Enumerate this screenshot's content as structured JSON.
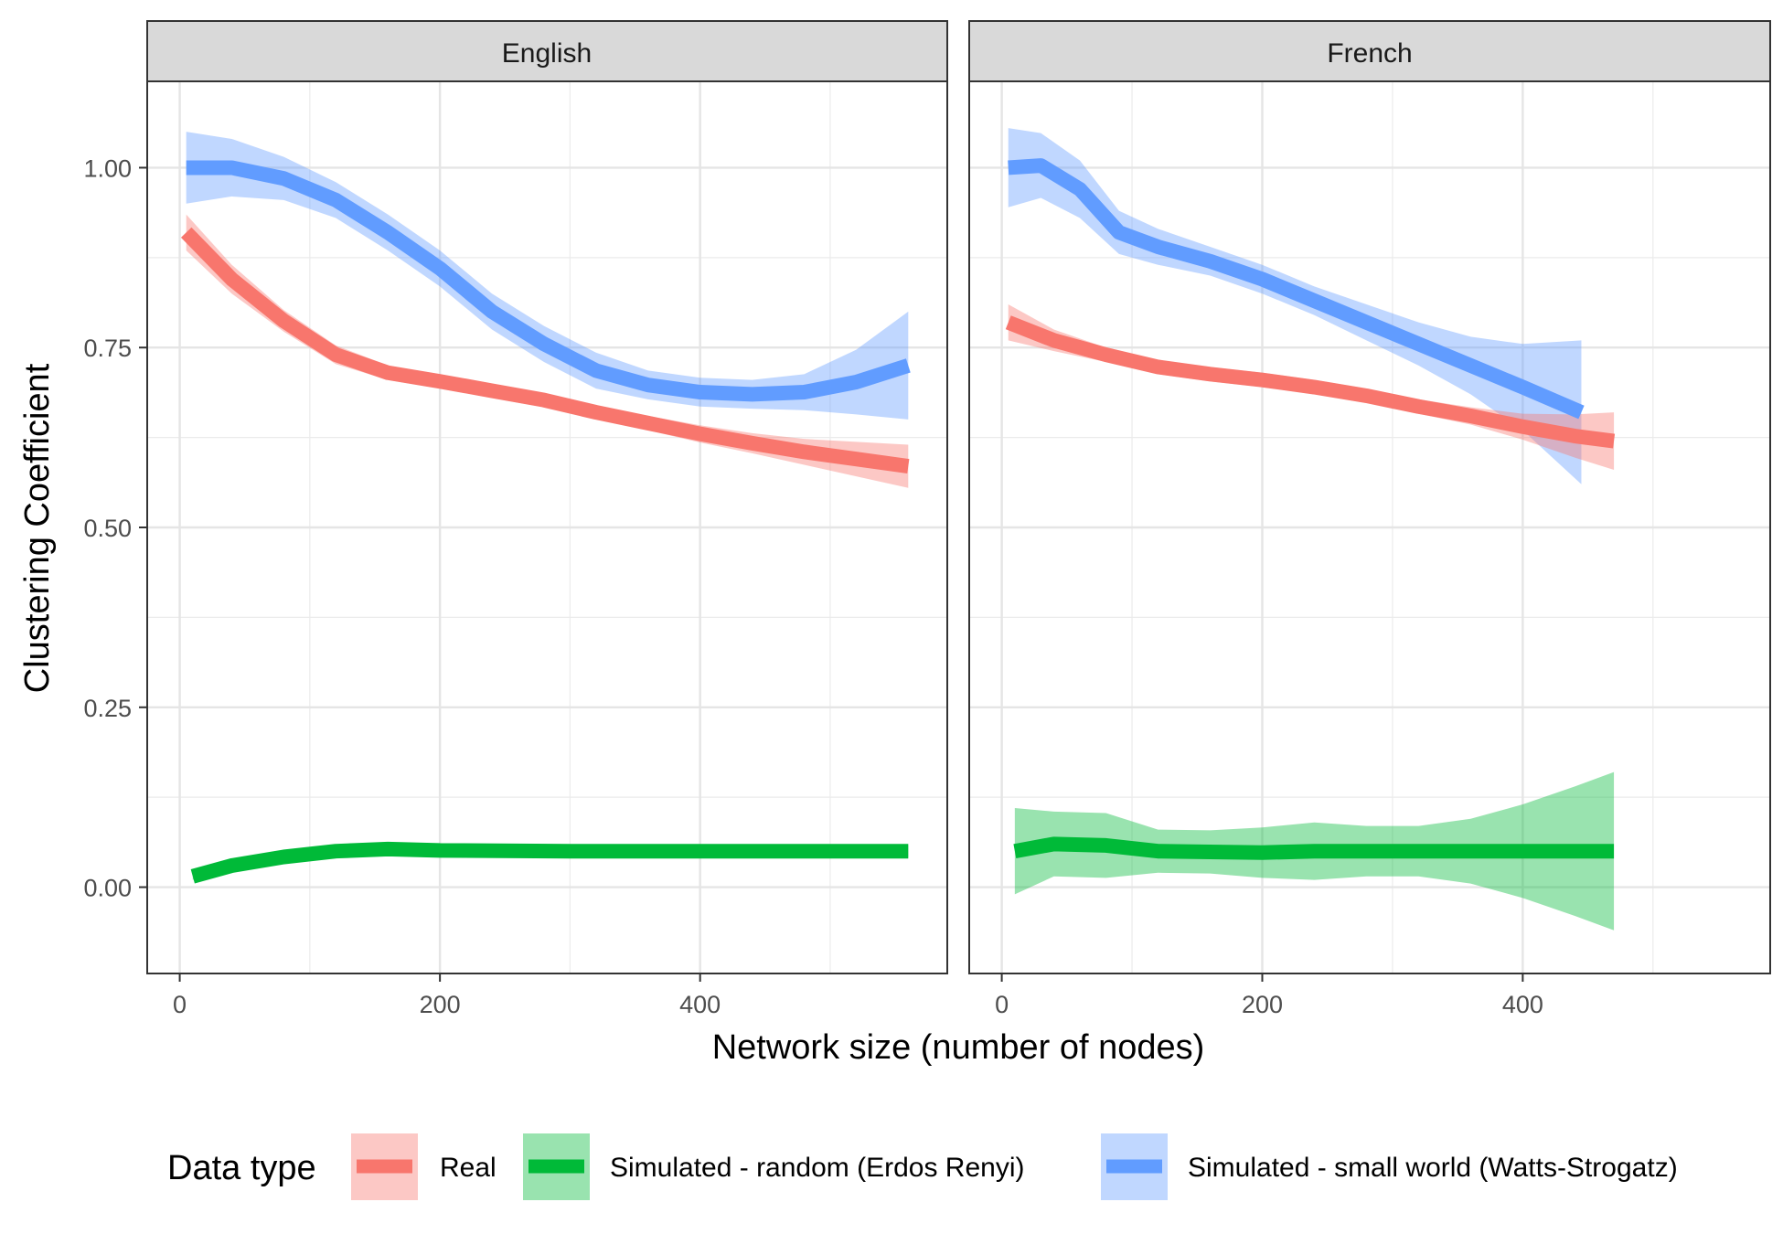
{
  "chart_data": {
    "type": "line",
    "xlabel": "Network size (number of nodes)",
    "ylabel": "Clustering Coefficient",
    "xlim": [
      -25,
      590
    ],
    "ylim": [
      -0.12,
      1.12
    ],
    "x_ticks": [
      0,
      200,
      400
    ],
    "y_ticks": [
      0.0,
      0.25,
      0.5,
      0.75,
      1.0
    ],
    "y_tick_labels": [
      "0.00",
      "0.25",
      "0.50",
      "0.75",
      "1.00"
    ],
    "grid": true,
    "legend": {
      "title": "Data type",
      "position": "bottom",
      "entries": [
        {
          "label": "Real",
          "color": "#F8766D"
        },
        {
          "label": "Simulated - random (Erdos Renyi)",
          "color": "#00BA38"
        },
        {
          "label": "Simulated - small world (Watts-Strogatz)",
          "color": "#619CFF"
        }
      ]
    },
    "facets": [
      {
        "title": "English",
        "series": [
          {
            "name": "Simulated - small world (Watts-Strogatz)",
            "color": "#619CFF",
            "x": [
              5,
              40,
              80,
              120,
              160,
              200,
              240,
              280,
              320,
              360,
              400,
              440,
              480,
              520,
              560
            ],
            "y": [
              1.0,
              1.0,
              0.985,
              0.955,
              0.91,
              0.86,
              0.8,
              0.755,
              0.718,
              0.698,
              0.688,
              0.685,
              0.688,
              0.702,
              0.725
            ],
            "ci": [
              0.05,
              0.04,
              0.03,
              0.025,
              0.025,
              0.025,
              0.025,
              0.025,
              0.025,
              0.02,
              0.02,
              0.02,
              0.025,
              0.045,
              0.075
            ]
          },
          {
            "name": "Real",
            "color": "#F8766D",
            "x": [
              5,
              40,
              80,
              120,
              160,
              200,
              240,
              280,
              320,
              360,
              400,
              440,
              480,
              520,
              560
            ],
            "y": [
              0.91,
              0.845,
              0.787,
              0.74,
              0.715,
              0.703,
              0.69,
              0.677,
              0.66,
              0.645,
              0.63,
              0.617,
              0.605,
              0.595,
              0.585
            ],
            "ci": [
              0.025,
              0.02,
              0.015,
              0.013,
              0.01,
              0.01,
              0.01,
              0.01,
              0.01,
              0.01,
              0.012,
              0.014,
              0.018,
              0.024,
              0.03
            ]
          },
          {
            "name": "Simulated - random (Erdos Renyi)",
            "color": "#00BA38",
            "x": [
              10,
              40,
              80,
              120,
              160,
              200,
              300,
              400,
              500,
              560
            ],
            "y": [
              0.015,
              0.03,
              0.042,
              0.05,
              0.053,
              0.051,
              0.05,
              0.05,
              0.05,
              0.05
            ],
            "ci": [
              0.005,
              0.004,
              0.004,
              0.003,
              0.003,
              0.003,
              0.003,
              0.003,
              0.005,
              0.008
            ]
          }
        ]
      },
      {
        "title": "French",
        "series": [
          {
            "name": "Simulated - small world (Watts-Strogatz)",
            "color": "#619CFF",
            "x": [
              5,
              30,
              60,
              90,
              120,
              160,
              200,
              240,
              280,
              320,
              360,
              400,
              445
            ],
            "y": [
              1.0,
              1.003,
              0.97,
              0.91,
              0.89,
              0.87,
              0.845,
              0.815,
              0.785,
              0.755,
              0.725,
              0.695,
              0.66
            ],
            "ci": [
              0.055,
              0.045,
              0.04,
              0.03,
              0.025,
              0.02,
              0.02,
              0.02,
              0.025,
              0.03,
              0.04,
              0.06,
              0.1
            ]
          },
          {
            "name": "Real",
            "color": "#F8766D",
            "x": [
              5,
              40,
              80,
              120,
              160,
              200,
              240,
              280,
              320,
              360,
              400,
              440,
              470
            ],
            "y": [
              0.785,
              0.76,
              0.74,
              0.723,
              0.713,
              0.705,
              0.695,
              0.683,
              0.668,
              0.655,
              0.64,
              0.627,
              0.62
            ],
            "ci": [
              0.025,
              0.015,
              0.01,
              0.01,
              0.01,
              0.01,
              0.01,
              0.01,
              0.01,
              0.012,
              0.018,
              0.03,
              0.04
            ]
          },
          {
            "name": "Simulated - random (Erdos Renyi)",
            "color": "#00BA38",
            "x": [
              10,
              40,
              80,
              120,
              160,
              200,
              240,
              280,
              320,
              360,
              400,
              440,
              470
            ],
            "y": [
              0.05,
              0.06,
              0.058,
              0.05,
              0.049,
              0.048,
              0.05,
              0.05,
              0.05,
              0.05,
              0.05,
              0.05,
              0.05
            ],
            "ci": [
              0.06,
              0.045,
              0.045,
              0.03,
              0.03,
              0.035,
              0.04,
              0.035,
              0.035,
              0.045,
              0.065,
              0.09,
              0.11
            ]
          }
        ]
      }
    ]
  }
}
